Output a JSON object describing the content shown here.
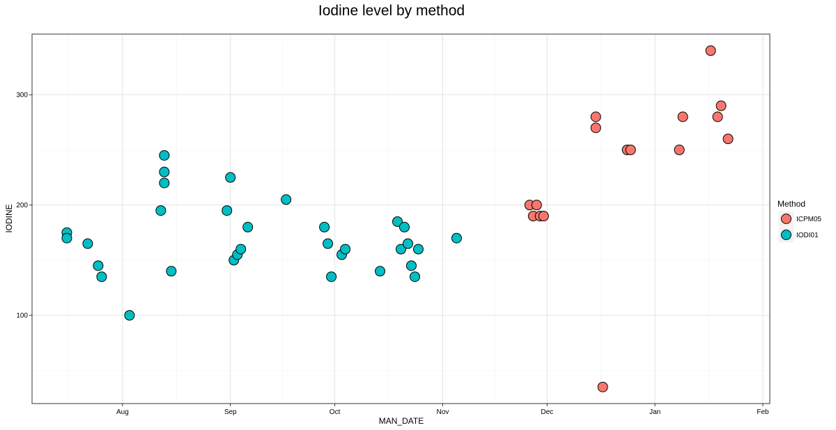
{
  "chart_data": {
    "type": "scatter",
    "title": "Iodine level by method",
    "xlabel": "MAN_DATE",
    "ylabel": "IODINE",
    "x_ticks": [
      {
        "date": "2016-08-01",
        "label": "Aug"
      },
      {
        "date": "2016-09-01",
        "label": "Sep"
      },
      {
        "date": "2016-10-01",
        "label": "Oct"
      },
      {
        "date": "2016-11-01",
        "label": "Nov"
      },
      {
        "date": "2016-12-01",
        "label": "Dec"
      },
      {
        "date": "2017-01-01",
        "label": "Jan"
      },
      {
        "date": "2017-02-01",
        "label": "Feb"
      }
    ],
    "y_ticks": [
      100,
      200,
      300
    ],
    "xlim": [
      "2016-07-06",
      "2017-02-03"
    ],
    "ylim": [
      20,
      355
    ],
    "grid": true,
    "legend": {
      "title": "Method",
      "position": "right"
    },
    "series": [
      {
        "name": "ICPM05",
        "color": "#F8766D",
        "points": [
          {
            "x": "2016-11-26",
            "y": 200
          },
          {
            "x": "2016-11-27",
            "y": 190
          },
          {
            "x": "2016-11-28",
            "y": 200
          },
          {
            "x": "2016-11-29",
            "y": 190
          },
          {
            "x": "2016-11-30",
            "y": 190
          },
          {
            "x": "2016-12-15",
            "y": 280
          },
          {
            "x": "2016-12-15",
            "y": 270
          },
          {
            "x": "2016-12-17",
            "y": 35
          },
          {
            "x": "2016-12-24",
            "y": 250
          },
          {
            "x": "2016-12-25",
            "y": 250
          },
          {
            "x": "2017-01-08",
            "y": 250
          },
          {
            "x": "2017-01-09",
            "y": 280
          },
          {
            "x": "2017-01-17",
            "y": 340
          },
          {
            "x": "2017-01-19",
            "y": 280
          },
          {
            "x": "2017-01-20",
            "y": 290
          },
          {
            "x": "2017-01-22",
            "y": 260
          }
        ]
      },
      {
        "name": "IODI01",
        "color": "#00BFC4",
        "points": [
          {
            "x": "2016-07-16",
            "y": 175
          },
          {
            "x": "2016-07-16",
            "y": 170
          },
          {
            "x": "2016-07-22",
            "y": 165
          },
          {
            "x": "2016-07-25",
            "y": 145
          },
          {
            "x": "2016-07-26",
            "y": 135
          },
          {
            "x": "2016-08-03",
            "y": 100
          },
          {
            "x": "2016-08-12",
            "y": 195
          },
          {
            "x": "2016-08-13",
            "y": 245
          },
          {
            "x": "2016-08-13",
            "y": 230
          },
          {
            "x": "2016-08-13",
            "y": 220
          },
          {
            "x": "2016-08-15",
            "y": 140
          },
          {
            "x": "2016-08-31",
            "y": 195
          },
          {
            "x": "2016-09-01",
            "y": 225
          },
          {
            "x": "2016-09-02",
            "y": 150
          },
          {
            "x": "2016-09-03",
            "y": 155
          },
          {
            "x": "2016-09-04",
            "y": 160
          },
          {
            "x": "2016-09-06",
            "y": 180
          },
          {
            "x": "2016-09-17",
            "y": 205
          },
          {
            "x": "2016-09-28",
            "y": 180
          },
          {
            "x": "2016-09-29",
            "y": 165
          },
          {
            "x": "2016-09-30",
            "y": 135
          },
          {
            "x": "2016-10-03",
            "y": 155
          },
          {
            "x": "2016-10-04",
            "y": 160
          },
          {
            "x": "2016-10-14",
            "y": 140
          },
          {
            "x": "2016-10-19",
            "y": 185
          },
          {
            "x": "2016-10-20",
            "y": 160
          },
          {
            "x": "2016-10-21",
            "y": 180
          },
          {
            "x": "2016-10-22",
            "y": 165
          },
          {
            "x": "2016-10-23",
            "y": 145
          },
          {
            "x": "2016-10-24",
            "y": 135
          },
          {
            "x": "2016-10-25",
            "y": 160
          },
          {
            "x": "2016-11-05",
            "y": 170
          }
        ]
      }
    ]
  }
}
